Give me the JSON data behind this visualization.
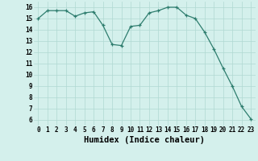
{
  "x": [
    0,
    1,
    2,
    3,
    4,
    5,
    6,
    7,
    8,
    9,
    10,
    11,
    12,
    13,
    14,
    15,
    16,
    17,
    18,
    19,
    20,
    21,
    22,
    23
  ],
  "y": [
    15.0,
    15.7,
    15.7,
    15.7,
    15.2,
    15.5,
    15.6,
    14.4,
    12.7,
    12.6,
    14.3,
    14.4,
    15.5,
    15.7,
    16.0,
    16.0,
    15.3,
    15.0,
    13.8,
    12.3,
    10.6,
    9.0,
    7.2,
    6.1
  ],
  "line_color": "#2e7d6e",
  "marker": "+",
  "marker_size": 3,
  "bg_color": "#d4f0ec",
  "grid_color": "#b0d8d2",
  "xlabel": "Humidex (Indice chaleur)",
  "xlim": [
    -0.5,
    23.5
  ],
  "ylim": [
    5.5,
    16.5
  ],
  "yticks": [
    6,
    7,
    8,
    9,
    10,
    11,
    12,
    13,
    14,
    15,
    16
  ],
  "xticks": [
    0,
    1,
    2,
    3,
    4,
    5,
    6,
    7,
    8,
    9,
    10,
    11,
    12,
    13,
    14,
    15,
    16,
    17,
    18,
    19,
    20,
    21,
    22,
    23
  ],
  "tick_fontsize": 5.5,
  "xlabel_fontsize": 7.5
}
